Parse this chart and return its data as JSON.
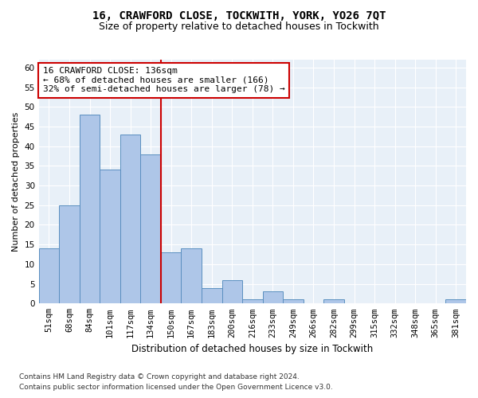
{
  "title": "16, CRAWFORD CLOSE, TOCKWITH, YORK, YO26 7QT",
  "subtitle": "Size of property relative to detached houses in Tockwith",
  "xlabel": "Distribution of detached houses by size in Tockwith",
  "ylabel": "Number of detached properties",
  "categories": [
    "51sqm",
    "68sqm",
    "84sqm",
    "101sqm",
    "117sqm",
    "134sqm",
    "150sqm",
    "167sqm",
    "183sqm",
    "200sqm",
    "216sqm",
    "233sqm",
    "249sqm",
    "266sqm",
    "282sqm",
    "299sqm",
    "315sqm",
    "332sqm",
    "348sqm",
    "365sqm",
    "381sqm"
  ],
  "values": [
    14,
    25,
    48,
    34,
    43,
    38,
    13,
    14,
    4,
    6,
    1,
    3,
    1,
    0,
    1,
    0,
    0,
    0,
    0,
    0,
    1
  ],
  "bar_color": "#aec6e8",
  "bar_edge_color": "#5a8fc0",
  "bar_width": 1.0,
  "vline_x": 5.5,
  "vline_color": "#cc0000",
  "annotation_text": "16 CRAWFORD CLOSE: 136sqm\n← 68% of detached houses are smaller (166)\n32% of semi-detached houses are larger (78) →",
  "annotation_box_color": "#ffffff",
  "annotation_box_edge": "#cc0000",
  "ylim": [
    0,
    62
  ],
  "yticks": [
    0,
    5,
    10,
    15,
    20,
    25,
    30,
    35,
    40,
    45,
    50,
    55,
    60
  ],
  "bg_color": "#e8f0f8",
  "grid_color": "#ffffff",
  "footer_line1": "Contains HM Land Registry data © Crown copyright and database right 2024.",
  "footer_line2": "Contains public sector information licensed under the Open Government Licence v3.0.",
  "title_fontsize": 10,
  "subtitle_fontsize": 9,
  "xlabel_fontsize": 8.5,
  "ylabel_fontsize": 8,
  "tick_fontsize": 7.5,
  "annotation_fontsize": 8,
  "footer_fontsize": 6.5
}
